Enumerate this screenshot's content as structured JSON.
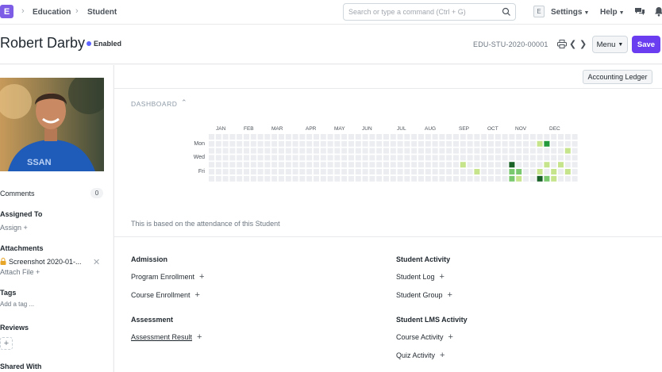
{
  "navbar": {
    "logo": "E",
    "breadcrumbs": [
      "Education",
      "Student"
    ],
    "search_placeholder": "Search or type a command (Ctrl + G)",
    "avatar_letter": "E",
    "settings_label": "Settings",
    "help_label": "Help"
  },
  "page": {
    "title": "Robert Darby",
    "status": "Enabled",
    "doc_id": "EDU-STU-2020-00001",
    "menu_label": "Menu",
    "save_label": "Save"
  },
  "sidebar": {
    "comments_label": "Comments",
    "comments_count": "0",
    "assigned_to_label": "Assigned To",
    "assign_link": "Assign +",
    "attachments_label": "Attachments",
    "attachment_file": "Screenshot 2020-01-...",
    "attach_file_link": "Attach File +",
    "tags_label": "Tags",
    "add_tag_link": "Add a tag ...",
    "reviews_label": "Reviews",
    "shared_with_label": "Shared With"
  },
  "main": {
    "ledger_label": "Accounting Ledger",
    "dashboard_title": "DASHBOARD",
    "heatmap": {
      "months": [
        "JAN",
        "FEB",
        "MAR",
        "APR",
        "MAY",
        "JUN",
        "JUL",
        "AUG",
        "SEP",
        "OCT",
        "NOV",
        "DEC"
      ],
      "days": [
        "Mon",
        "Wed",
        "Fri"
      ],
      "weeks": 53,
      "colors": [
        "#ebedf0",
        "#c6e48b",
        "#7bc96f",
        "#239a3b",
        "#196127"
      ],
      "levels": [
        {
          "week": 36,
          "day": 4,
          "level": 1
        },
        {
          "week": 38,
          "day": 5,
          "level": 1
        },
        {
          "week": 40,
          "day": 7,
          "level": 1
        },
        {
          "week": 43,
          "day": 4,
          "level": 4
        },
        {
          "week": 43,
          "day": 5,
          "level": 2
        },
        {
          "week": 43,
          "day": 6,
          "level": 2
        },
        {
          "week": 44,
          "day": 5,
          "level": 2
        },
        {
          "week": 44,
          "day": 6,
          "level": 1
        },
        {
          "week": 47,
          "day": 1,
          "level": 1
        },
        {
          "week": 47,
          "day": 5,
          "level": 1
        },
        {
          "week": 47,
          "day": 6,
          "level": 4
        },
        {
          "week": 48,
          "day": 1,
          "level": 3
        },
        {
          "week": 48,
          "day": 4,
          "level": 1
        },
        {
          "week": 48,
          "day": 6,
          "level": 2
        },
        {
          "week": 49,
          "day": 5,
          "level": 1
        },
        {
          "week": 49,
          "day": 6,
          "level": 1
        },
        {
          "week": 50,
          "day": 4,
          "level": 1
        },
        {
          "week": 51,
          "day": 2,
          "level": 1
        },
        {
          "week": 51,
          "day": 5,
          "level": 1
        }
      ]
    },
    "heatmap_note": "This is based on the attendance of this Student",
    "admission_title": "Admission",
    "program_enrollment": "Program Enrollment",
    "course_enrollment": "Course Enrollment",
    "assessment_title": "Assessment",
    "assessment_result": "Assessment Result",
    "student_activity_title": "Student Activity",
    "student_log": "Student Log",
    "student_group": "Student Group",
    "lms_activity_title": "Student LMS Activity",
    "course_activity": "Course Activity",
    "quiz_activity": "Quiz Activity"
  }
}
